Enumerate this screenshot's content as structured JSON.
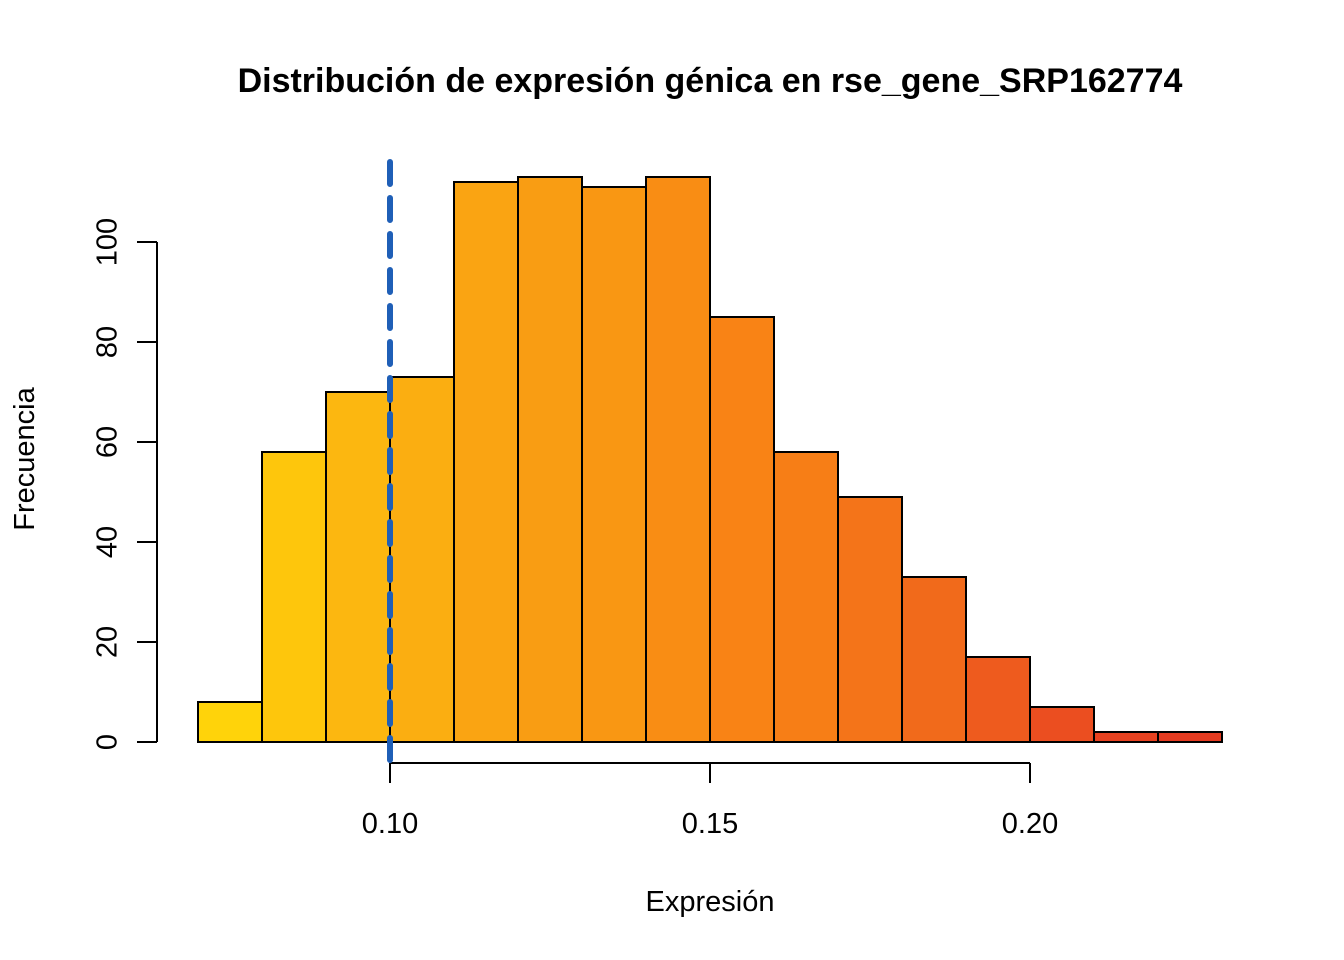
{
  "chart_data": {
    "type": "bar",
    "title": "Distribución de expresión génica en rse_gene_SRP162774",
    "xlabel": "Expresión",
    "ylabel": "Frecuencia",
    "x_bins": [
      [
        0.07,
        0.08
      ],
      [
        0.08,
        0.09
      ],
      [
        0.09,
        0.1
      ],
      [
        0.1,
        0.11
      ],
      [
        0.11,
        0.12
      ],
      [
        0.12,
        0.13
      ],
      [
        0.13,
        0.14
      ],
      [
        0.14,
        0.15
      ],
      [
        0.15,
        0.16
      ],
      [
        0.16,
        0.17
      ],
      [
        0.17,
        0.18
      ],
      [
        0.18,
        0.19
      ],
      [
        0.19,
        0.2
      ],
      [
        0.2,
        0.21
      ],
      [
        0.21,
        0.22
      ],
      [
        0.22,
        0.23
      ]
    ],
    "values": [
      8,
      58,
      70,
      73,
      112,
      113,
      111,
      113,
      85,
      58,
      49,
      33,
      17,
      7,
      2,
      2
    ],
    "colors": [
      "#FFD30A",
      "#FEC60C",
      "#FCB710",
      "#FBAE11",
      "#FAA412",
      "#F99D13",
      "#F99713",
      "#F98D14",
      "#F98315",
      "#F77E16",
      "#F47419",
      "#F16A1B",
      "#EE5B1E",
      "#EB4E20",
      "#E74220",
      "#E43B20"
    ],
    "xlim": [
      0.07,
      0.23
    ],
    "ylim": [
      0,
      116
    ],
    "x_ticks": [
      0.1,
      0.15,
      0.2
    ],
    "x_tick_labels": [
      "0.10",
      "0.15",
      "0.20"
    ],
    "y_ticks": [
      0,
      20,
      40,
      60,
      80,
      100
    ],
    "y_tick_labels": [
      "0",
      "20",
      "40",
      "60",
      "80",
      "100"
    ],
    "vline": {
      "x": 0.1,
      "color": "#1F5FB7",
      "style": "dashed"
    },
    "grid": false,
    "legend": "none"
  }
}
